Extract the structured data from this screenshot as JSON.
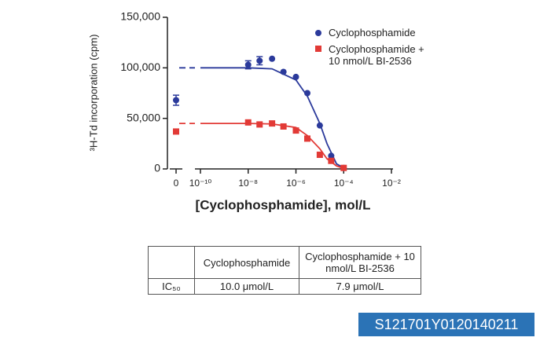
{
  "chart_data": {
    "type": "scatter",
    "y_label": "³H-Td incorporation (cpm)",
    "x_label": "[Cyclophosphamide], mol/L",
    "xscale": "log",
    "ylim": [
      0,
      150000
    ],
    "yticks": [
      {
        "value": 0,
        "label": "0"
      },
      {
        "value": 50000,
        "label": "50,000"
      },
      {
        "value": 100000,
        "label": "100,000"
      },
      {
        "value": 150000,
        "label": "150,000"
      }
    ],
    "xlim": [
      1e-10,
      0.01
    ],
    "xticks": [
      0,
      {
        "value": 1e-10,
        "label": "10⁻¹⁰"
      },
      {
        "value": 1e-08,
        "label": "10⁻⁸"
      },
      {
        "value": 1e-06,
        "label": "10⁻⁶"
      },
      {
        "value": 0.0001,
        "label": "10⁻⁴"
      },
      {
        "value": 0.01,
        "label": "10⁻²"
      }
    ],
    "series": [
      {
        "name": "Cyclophosphamide",
        "color": "#2b3a9b",
        "marker": "circle",
        "x": [
          0,
          1e-08,
          3e-08,
          1e-07,
          3e-07,
          1e-06,
          3e-06,
          1e-05,
          3e-05,
          0.0001
        ],
        "values": [
          68000,
          103000,
          107000,
          109000,
          96000,
          91000,
          75000,
          43000,
          13000,
          1000
        ],
        "errors": [
          5000,
          4000,
          4000,
          null,
          null,
          null,
          null,
          null,
          null,
          null
        ],
        "fit_x": [
          1e-10,
          1e-09,
          1e-08,
          1e-07,
          1e-06,
          3e-06,
          1e-05,
          2e-05,
          5e-05,
          0.0001
        ],
        "fit_values": [
          100000,
          100000,
          100000,
          99000,
          88000,
          72000,
          45000,
          25000,
          5000,
          1000
        ]
      },
      {
        "name": "Cyclophosphamide + 10 nmol/L BI-2536",
        "color": "#e23a36",
        "marker": "square",
        "x": [
          0,
          1e-08,
          3e-08,
          1e-07,
          3e-07,
          1e-06,
          3e-06,
          1e-05,
          3e-05,
          0.0001
        ],
        "values": [
          37000,
          46000,
          44000,
          45000,
          42000,
          38000,
          30000,
          14000,
          8000,
          1000
        ],
        "errors": [
          null,
          null,
          null,
          null,
          null,
          null,
          null,
          null,
          null,
          null
        ],
        "fit_x": [
          1e-10,
          1e-09,
          1e-08,
          1e-07,
          1e-06,
          3e-06,
          1e-05,
          2e-05,
          5e-05,
          0.0001
        ],
        "fit_values": [
          45000,
          45000,
          45000,
          44500,
          41000,
          33000,
          20000,
          10000,
          3000,
          500
        ]
      }
    ]
  },
  "table": {
    "columns": [
      "Cyclophosphamide",
      "Cyclophosphamide + 10 nmol/L BI-2536"
    ],
    "rows": [
      {
        "label": "IC₅₀",
        "cells": [
          "10.0 μmol/L",
          "7.9 μmol/L"
        ]
      }
    ]
  },
  "badge": "S121701Y0120140211"
}
